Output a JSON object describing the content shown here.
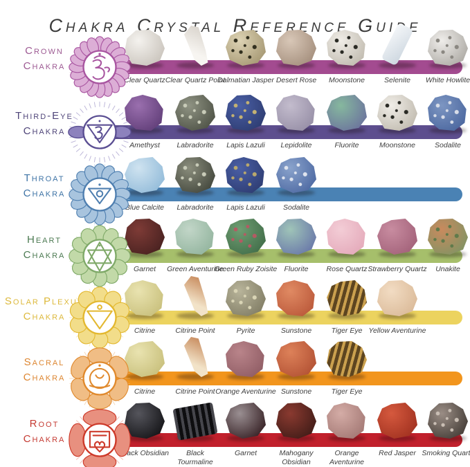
{
  "title": "Chakra Crystal Reference Guide",
  "rows": [
    {
      "id": "crown",
      "name_line1": "Crown",
      "name_line2": "Chakra",
      "label_color": "#9d5a93",
      "bar_color": "#a34b90",
      "icon": {
        "name": "crown-chakra-lotus-om-icon",
        "type": "crown",
        "color": "#a855a0",
        "tint": "#dcaed6"
      },
      "crystals": [
        {
          "name": "Clear Quartz",
          "c1": "#f4f2ee",
          "c2": "#c7c1b9"
        },
        {
          "name": "Clear Quartz Point",
          "c1": "#f7f5f1",
          "c2": "#d4cec6",
          "variant": "point"
        },
        {
          "name": "Dalmatian Jasper",
          "c1": "#ddd3b4",
          "c2": "#a2946f",
          "spots": "#32301f"
        },
        {
          "name": "Desert Rose",
          "c1": "#d8c7b7",
          "c2": "#a18b79"
        },
        {
          "name": "Moonstone",
          "c1": "#f0ede7",
          "c2": "#bdb7ab",
          "spots": "#2a2a24"
        },
        {
          "name": "Selenite",
          "c1": "#f6f8fa",
          "c2": "#ccd6df",
          "variant": "bar"
        },
        {
          "name": "White Howlite",
          "c1": "#efedea",
          "c2": "#a9a6a0",
          "spots": "#8a8781"
        }
      ]
    },
    {
      "id": "third-eye",
      "name_line1": "Third-Eye",
      "name_line2": "Chakra",
      "label_color": "#4f4579",
      "bar_color": "#5d4e8e",
      "icon": {
        "name": "third-eye-chakra-winged-triangle-icon",
        "type": "third-eye",
        "color": "#5b4f93",
        "tint": "#8d82bd"
      },
      "crystals": [
        {
          "name": "Amethyst",
          "c1": "#9a6fae",
          "c2": "#5c3a74"
        },
        {
          "name": "Labradorite",
          "c1": "#8f9383",
          "c2": "#4a4e42",
          "spots": "#c8cbb8"
        },
        {
          "name": "Lapis Lazuli",
          "c1": "#4a5fa5",
          "c2": "#2c3a6e",
          "spots": "#c3b173"
        },
        {
          "name": "Lepidolite",
          "c1": "#c3bccd",
          "c2": "#938ba3"
        },
        {
          "name": "Fluorite",
          "c1": "#86b89e",
          "c2": "#6a6f9d"
        },
        {
          "name": "Moonstone",
          "c1": "#f0ede7",
          "c2": "#bdb7ab",
          "spots": "#2a2a24"
        },
        {
          "name": "Sodalite",
          "c1": "#7d96c2",
          "c2": "#47639c",
          "spots": "#d8dde8"
        }
      ]
    },
    {
      "id": "throat",
      "name_line1": "Throat",
      "name_line2": "Chakra",
      "label_color": "#3f74a6",
      "bar_color": "#4a82b4",
      "icon": {
        "name": "throat-chakra-lotus-triangle-icon",
        "type": "throat",
        "color": "#4f7fb0",
        "tint": "#a8c4de"
      },
      "crystals": [
        {
          "name": "Blue Calcite",
          "c1": "#cfe3f0",
          "c2": "#8fb9d8"
        },
        {
          "name": "Labradorite",
          "c1": "#8a8d7c",
          "c2": "#3f4339",
          "spots": "#c8cbb8"
        },
        {
          "name": "Lapis Lazuli",
          "c1": "#4a5fa5",
          "c2": "#2c3a6e",
          "spots": "#b9a86d"
        },
        {
          "name": "Sodalite",
          "c1": "#8aa3cc",
          "c2": "#4a66a0",
          "spots": "#dfe4ee"
        }
      ]
    },
    {
      "id": "heart",
      "name_line1": "Heart",
      "name_line2": "Chakra",
      "label_color": "#4c7a52",
      "bar_color": "#a6bf6b",
      "icon": {
        "name": "heart-chakra-lotus-hexagram-icon",
        "type": "heart",
        "color": "#7fa968",
        "tint": "#c2d9a8"
      },
      "crystals": [
        {
          "name": "Garnet",
          "c1": "#7e3b36",
          "c2": "#45201f"
        },
        {
          "name": "Green Aventurine",
          "c1": "#c2d6c8",
          "c2": "#8fb29b"
        },
        {
          "name": "Green Ruby Zoisite",
          "c1": "#6f9d72",
          "c2": "#3f6b47",
          "spots": "#b55a63"
        },
        {
          "name": "Fluorite",
          "c1": "#9fc4b8",
          "c2": "#6673a8"
        },
        {
          "name": "Rose Quartz",
          "c1": "#f3cdd6",
          "c2": "#e3a7b8"
        },
        {
          "name": "Strawberry Quartz",
          "c1": "#c88ca0",
          "c2": "#a05f77"
        },
        {
          "name": "Unakite",
          "c1": "#c98a5e",
          "c2": "#7d9464",
          "spots": "#5f7a4a"
        }
      ]
    },
    {
      "id": "solar-plexus",
      "name_line1": "Solar Plexus",
      "name_line2": "Chakra",
      "label_color": "#ddb93c",
      "bar_color": "#ecd35f",
      "icon": {
        "name": "solar-plexus-chakra-lotus-triangle-icon",
        "type": "solar",
        "color": "#e3b830",
        "tint": "#f2dd8a"
      },
      "crystals": [
        {
          "name": "Citrine",
          "c1": "#e9e3b0",
          "c2": "#c6bd78"
        },
        {
          "name": "Citrine Point",
          "c1": "#f2e3c8",
          "c2": "#c07b4a",
          "variant": "point"
        },
        {
          "name": "Pyrite",
          "c1": "#b8b49a",
          "c2": "#7e7a62",
          "spots": "#d9d4b5"
        },
        {
          "name": "Sunstone",
          "c1": "#e08a63",
          "c2": "#b85537"
        },
        {
          "name": "Tiger Eye",
          "c1": "#caa04e",
          "c2": "#5d4520",
          "variant": "banded"
        },
        {
          "name": "Yellow Aventurine",
          "c1": "#f2dcc3",
          "c2": "#d9b896"
        }
      ]
    },
    {
      "id": "sacral",
      "name_line1": "Sacral",
      "name_line2": "Chakra",
      "label_color": "#dd8631",
      "bar_color": "#f2951d",
      "icon": {
        "name": "sacral-chakra-lotus-crescent-icon",
        "type": "sacral",
        "color": "#e08a2e",
        "tint": "#f0bd85"
      },
      "crystals": [
        {
          "name": "Citrine",
          "c1": "#e9e3b0",
          "c2": "#c6bd78"
        },
        {
          "name": "Citrine Point",
          "c1": "#f2e3c8",
          "c2": "#c07b4a",
          "variant": "point"
        },
        {
          "name": "Orange Aventurine",
          "c1": "#b9848a",
          "c2": "#8d5a62"
        },
        {
          "name": "Sunstone",
          "c1": "#dd8159",
          "c2": "#b04f32"
        },
        {
          "name": "Tiger Eye",
          "c1": "#caa04e",
          "c2": "#5d4520",
          "variant": "banded"
        }
      ]
    },
    {
      "id": "root",
      "name_line1": "Root",
      "name_line2": "Chakra",
      "label_color": "#c53b33",
      "bar_color": "#c1202c",
      "wrap_labels": true,
      "icon": {
        "name": "root-chakra-lotus-square-icon",
        "type": "root",
        "color": "#cd3a2a",
        "tint": "#e8907f"
      },
      "crystals": [
        {
          "name": "Black Obsidian",
          "c1": "#55555c",
          "c2": "#101013"
        },
        {
          "name": "Black Tourmaline",
          "c1": "#46464c",
          "c2": "#0e0e10",
          "variant": "column"
        },
        {
          "name": "Garnet",
          "c1": "#9a8f92",
          "c2": "#301a1e"
        },
        {
          "name": "Mahogany Obsidian",
          "c1": "#8a3a30",
          "c2": "#3c1a16"
        },
        {
          "name": "Orange Aventurine",
          "c1": "#d4aca6",
          "c2": "#9f7470"
        },
        {
          "name": "Red Jasper",
          "c1": "#d5593e",
          "c2": "#9e2f1e"
        },
        {
          "name": "Smoking Quartz",
          "c1": "#9a8d85",
          "c2": "#3f3832",
          "spots": "#c9beb4"
        }
      ]
    }
  ]
}
